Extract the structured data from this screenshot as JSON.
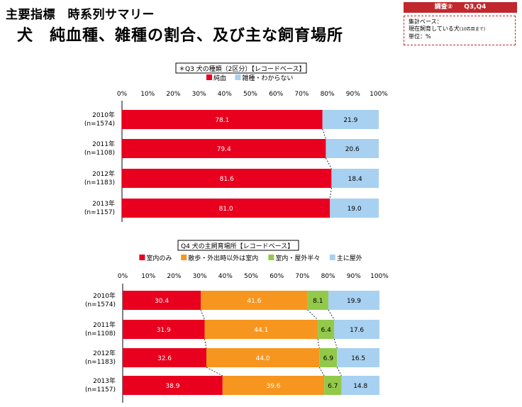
{
  "header": {
    "title_line1": "主要指標　時系列サマリー",
    "title_line2": "犬　純血種、雑種の割合、及び主な飼育場所",
    "badge_survey": "調査②",
    "badge_questions": "Q3,Q4",
    "base_line1": "集計ベース：",
    "base_line2": "現在飼育している犬",
    "base_line2_note": "(10匹目まで)",
    "base_line3": "単位：%"
  },
  "colors": {
    "red": "#e8001e",
    "lightblue": "#a8d0f0",
    "orange": "#f7961f",
    "green": "#92c94a",
    "accent": "#c0282d"
  },
  "chart_data": [
    {
      "type": "bar",
      "orientation": "horizontal",
      "stacked": true,
      "title": "＊Q3  犬の種類（2区分）【レコードベース】",
      "categories": [
        "2010年\n(n=1574)",
        "2011年\n(n=1108)",
        "2012年\n(n=1183)",
        "2013年\n(n=1157)"
      ],
      "series": [
        {
          "name": "純血",
          "color": "#e8001e",
          "values": [
            78.1,
            79.4,
            81.6,
            81.0
          ]
        },
        {
          "name": "雑種・わからない",
          "color": "#a8d0f0",
          "values": [
            21.9,
            20.6,
            18.4,
            19.0
          ]
        }
      ],
      "xlim": [
        0,
        100
      ],
      "ticks": [
        "0%",
        "10%",
        "20%",
        "30%",
        "40%",
        "50%",
        "60%",
        "70%",
        "80%",
        "90%",
        "100%"
      ],
      "legend": "top"
    },
    {
      "type": "bar",
      "orientation": "horizontal",
      "stacked": true,
      "title": "Q4  犬の主飼育場所【レコードベース】",
      "categories": [
        "2010年\n(n=1574)",
        "2011年\n(n=1108)",
        "2012年\n(n=1183)",
        "2013年\n(n=1157)"
      ],
      "series": [
        {
          "name": "室内のみ",
          "color": "#e8001e",
          "values": [
            30.4,
            31.9,
            32.6,
            38.9
          ]
        },
        {
          "name": "散歩・外出時以外は室内",
          "color": "#f7961f",
          "values": [
            41.6,
            44.1,
            44.0,
            39.6
          ]
        },
        {
          "name": "室内・屋外半々",
          "color": "#92c94a",
          "values": [
            8.1,
            6.4,
            6.9,
            6.7
          ]
        },
        {
          "name": "主に屋外",
          "color": "#a8d0f0",
          "values": [
            19.9,
            17.6,
            16.5,
            14.8
          ]
        }
      ],
      "xlim": [
        0,
        100
      ],
      "ticks": [
        "0%",
        "10%",
        "20%",
        "30%",
        "40%",
        "50%",
        "60%",
        "70%",
        "80%",
        "90%",
        "100%"
      ],
      "legend": "top"
    }
  ]
}
